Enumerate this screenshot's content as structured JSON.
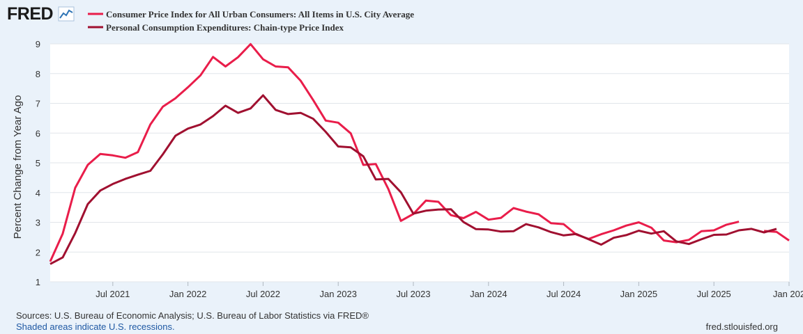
{
  "logo": {
    "text": "FRED"
  },
  "chart_data": {
    "type": "line",
    "title": "",
    "xlabel": "",
    "ylabel": "Percent Change from Year Ago",
    "ylim": [
      1,
      9
    ],
    "yticks": [
      1,
      2,
      3,
      4,
      5,
      6,
      7,
      8,
      9
    ],
    "xlim": [
      "2021-02",
      "2026-01"
    ],
    "xticks": [
      {
        "label": "Jul 2021",
        "date": "2021-07"
      },
      {
        "label": "Jan 2022",
        "date": "2022-01"
      },
      {
        "label": "Jul 2022",
        "date": "2022-07"
      },
      {
        "label": "Jan 2023",
        "date": "2023-01"
      },
      {
        "label": "Jul 2023",
        "date": "2023-07"
      },
      {
        "label": "Jan 2024",
        "date": "2024-01"
      },
      {
        "label": "Jul 2024",
        "date": "2024-07"
      },
      {
        "label": "Jan 2025",
        "date": "2025-01"
      },
      {
        "label": "Jul 2025",
        "date": "2025-07"
      },
      {
        "label": "Jan 202",
        "date": "2026-01"
      }
    ],
    "series": [
      {
        "name": "Consumer Price Index for All Urban Consumers: All Items in U.S. City Average",
        "color": "#e91d4a",
        "segments": [
          {
            "start": "2021-02",
            "values": [
              1.68,
              2.62,
              4.16,
              4.93,
              5.3,
              5.25,
              5.17,
              5.36,
              6.29,
              6.89,
              7.17,
              7.54,
              7.94,
              8.56,
              8.24,
              8.55,
              8.99,
              8.48,
              8.24,
              8.21,
              7.76,
              7.11,
              6.42,
              6.35,
              5.99,
              4.93,
              4.96,
              4.12,
              3.05,
              3.28,
              3.73,
              3.69,
              3.24,
              3.14,
              3.35,
              3.09,
              3.15,
              3.48,
              3.36,
              3.27,
              2.97,
              2.94,
              2.59,
              2.44,
              2.6,
              2.73,
              2.89,
              3.0,
              2.82,
              2.39,
              2.33,
              2.41,
              2.7,
              2.73,
              2.92,
              3.02
            ]
          },
          {
            "start": "2025-11",
            "values": [
              2.71,
              2.68,
              2.39
            ]
          }
        ]
      },
      {
        "name": "Personal Consumption Expenditures: Chain-type Price Index",
        "color": "#a01030",
        "segments": [
          {
            "start": "2021-02",
            "values": [
              1.6,
              1.82,
              2.64,
              3.61,
              4.07,
              4.29,
              4.46,
              4.6,
              4.73,
              5.29,
              5.91,
              6.15,
              6.29,
              6.57,
              6.92,
              6.68,
              6.83,
              7.27,
              6.78,
              6.64,
              6.68,
              6.48,
              6.04,
              5.55,
              5.52,
              5.22,
              4.44,
              4.46,
              4.01,
              3.29,
              3.39,
              3.43,
              3.44,
              3.01,
              2.77,
              2.76,
              2.69,
              2.7,
              2.94,
              2.83,
              2.67,
              2.56,
              2.61,
              2.43,
              2.25,
              2.48,
              2.57,
              2.72,
              2.62,
              2.7,
              2.36,
              2.27,
              2.43,
              2.58,
              2.59,
              2.73,
              2.78,
              2.66,
              2.78
            ]
          }
        ]
      }
    ]
  },
  "footer": {
    "sources": "Sources: U.S. Bureau of Economic Analysis; U.S. Bureau of Labor Statistics via FRED®",
    "shaded": "Shaded areas indicate U.S. recessions.",
    "url": "fred.stlouisfed.org"
  }
}
